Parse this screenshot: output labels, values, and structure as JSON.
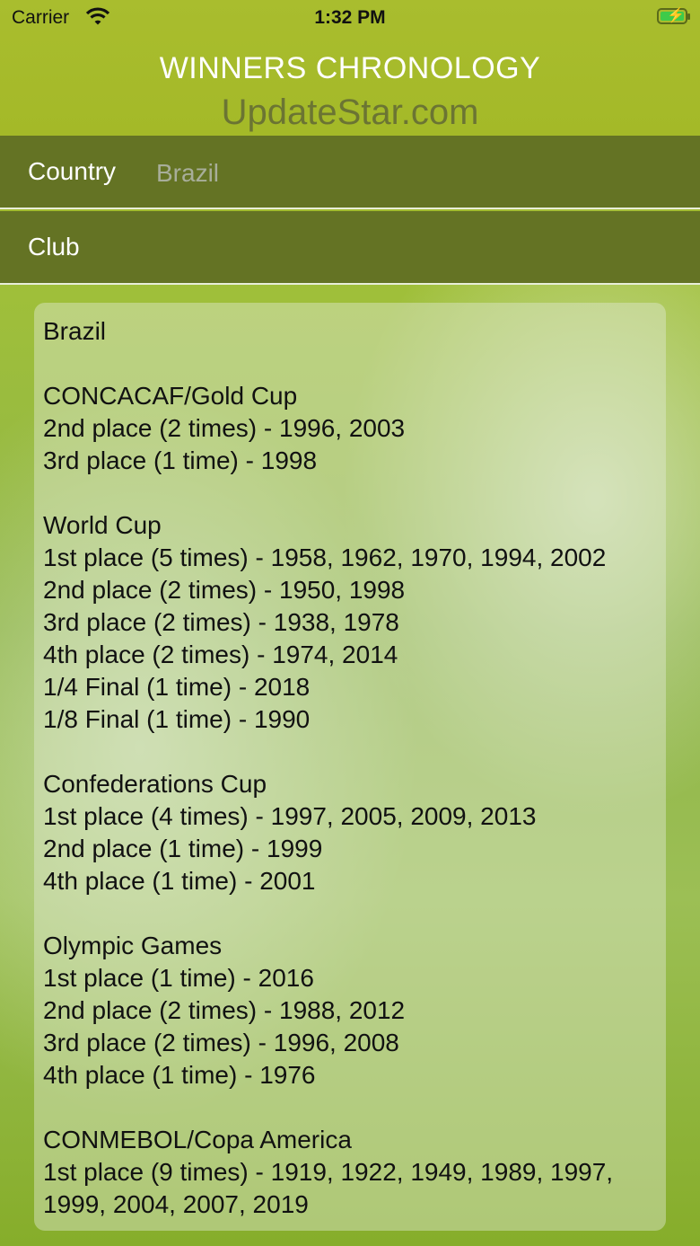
{
  "status_bar": {
    "carrier": "Carrier",
    "time": "1:32 PM",
    "wifi_icon": "wifi-icon",
    "battery_icon": "battery-charging-icon"
  },
  "header": {
    "title": "WINNERS CHRONOLOGY"
  },
  "filters": {
    "country": {
      "label": "Country",
      "value": "Brazil"
    },
    "club": {
      "label": "Club",
      "value": ""
    }
  },
  "content": {
    "lines": [
      "Brazil",
      "",
      "CONCACAF/Gold Cup",
      "2nd place (2 times) - 1996, 2003",
      "3rd place (1 time) - 1998",
      "",
      "World Cup",
      "1st place (5 times) - 1958, 1962, 1970, 1994, 2002",
      "2nd place (2 times) - 1950, 1998",
      "3rd place (2 times) - 1938, 1978",
      "4th place (2 times) - 1974, 2014",
      "1/4 Final (1 time) - 2018",
      "1/8 Final (1 time) - 1990",
      "",
      "Confederations Cup",
      "1st place (4 times) - 1997, 2005, 2009, 2013",
      "2nd place (1 time) - 1999",
      "4th place (1 time) - 2001",
      "",
      "Olympic Games",
      "1st place (1 time) - 2016",
      "2nd place (2 times) - 1988, 2012",
      "3rd place (2 times) - 1996, 2008",
      "4th place (1 time) - 1976",
      "",
      "CONMEBOL/Copa America",
      "1st place (9 times) - 1919, 1922, 1949, 1989, 1997, 1999, 2004, 2007, 2019"
    ]
  },
  "watermark": "UpdateStar.com",
  "colors": {
    "row_bg": "#647324",
    "title": "#ffffff"
  }
}
